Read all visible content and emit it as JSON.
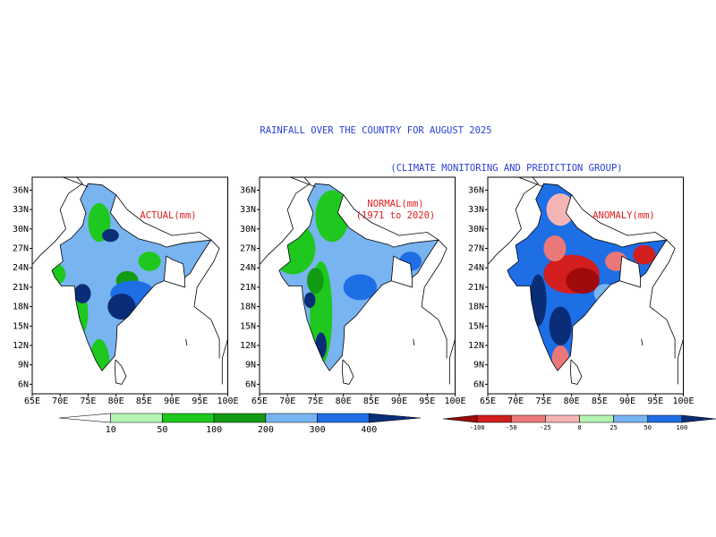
{
  "header": {
    "title": "RAINFALL OVER THE COUNTRY FOR AUGUST 2025",
    "subtitle": "(CLIMATE MONITORING AND PREDICTION GROUP)"
  },
  "panels": [
    {
      "label": [
        "ACTUAL(mm)"
      ]
    },
    {
      "label": [
        "NORMAL(mm)",
        "(1971 to 2020)"
      ]
    },
    {
      "label": [
        "ANOMALY(mm)"
      ]
    }
  ],
  "lat_labels": [
    "36N",
    "33N",
    "30N",
    "27N",
    "24N",
    "21N",
    "18N",
    "15N",
    "12N",
    "9N",
    "6N"
  ],
  "lon_labels": [
    "65E",
    "70E",
    "75E",
    "80E",
    "85E",
    "90E",
    "95E",
    "100E"
  ],
  "colorbars": [
    {
      "labels": [
        "10",
        "50",
        "100",
        "200",
        "300",
        "400"
      ],
      "colors": [
        "#ffffff",
        "#b4f5b4",
        "#1ec81e",
        "#129b12",
        "#78b4f0",
        "#1e6ee6",
        "#0a2d78"
      ]
    },
    {
      "labels": [
        "-100",
        "-50",
        "-25",
        "0",
        "25",
        "50",
        "100"
      ],
      "colors": [
        "#a00a0a",
        "#d21e1e",
        "#eb7878",
        "#f5b4b4",
        "#b4f5b4",
        "#78b4f0",
        "#1e6ee6",
        "#0a2d78"
      ]
    }
  ]
}
